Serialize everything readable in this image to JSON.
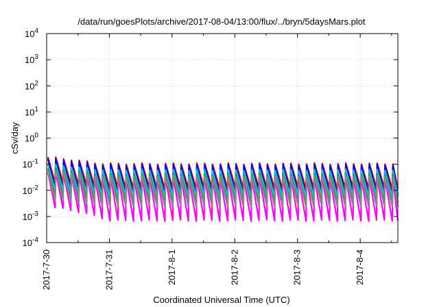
{
  "chart_data": {
    "type": "line",
    "title": "/data/run/goesPlots/archive/2017-08-04/13:00/flux/../bryn/5daysMars.plot",
    "xlabel": "Coordinated Universal Time (UTC)",
    "ylabel": "cSv/day",
    "y_scale": "log",
    "ylim_exponents": [
      -4,
      4
    ],
    "ytick_exponents": [
      -4,
      -3,
      -2,
      -1,
      0,
      1,
      2,
      3,
      4
    ],
    "ytick_base": "10",
    "x_range_days": [
      0,
      5.6
    ],
    "x_ticks": [
      {
        "day": 0,
        "label": "2017-7-30"
      },
      {
        "day": 1,
        "label": "2017-7-31"
      },
      {
        "day": 2,
        "label": "2017-8-1"
      },
      {
        "day": 3,
        "label": "2017-8-2"
      },
      {
        "day": 4,
        "label": "2017-8-3"
      },
      {
        "day": 5,
        "label": "2017-8-4"
      }
    ],
    "grid": true,
    "pattern": {
      "period_days": 0.125,
      "start_day": 0.02
    },
    "series": [
      {
        "color": "#ff00ff",
        "peak_start": 0.05,
        "peak_steady": 0.03,
        "trough_start": 0.0022,
        "trough_steady": 0.0007
      },
      {
        "color": "#cc0000",
        "peak_start": 0.19,
        "peak_steady": 0.105,
        "trough_start": 0.02,
        "trough_steady": 0.012
      },
      {
        "color": "#0000ff",
        "peak_start": 0.16,
        "peak_steady": 0.09,
        "trough_start": 0.012,
        "trough_steady": 0.007
      },
      {
        "color": "#00cccc",
        "peak_start": 0.1,
        "peak_steady": 0.06,
        "trough_start": 0.01,
        "trough_steady": 0.006
      },
      {
        "color": "#2e8b57",
        "peak_start": 0.07,
        "peak_steady": 0.04,
        "trough_start": 0.006,
        "trough_steady": 0.0035
      },
      {
        "color": "#888888",
        "peak_start": 0.06,
        "peak_steady": 0.035,
        "trough_start": 0.004,
        "trough_steady": 0.0025
      }
    ]
  }
}
